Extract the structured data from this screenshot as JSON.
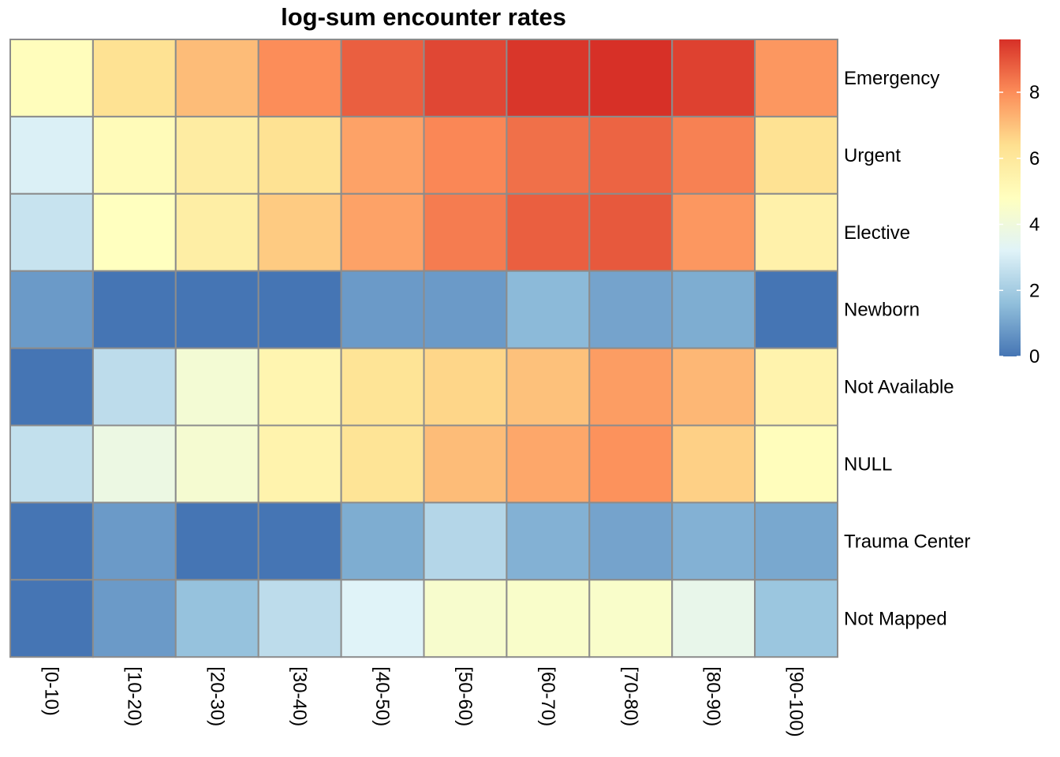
{
  "chart_data": {
    "type": "heatmap",
    "title": "log-sum encounter rates",
    "rows": [
      "Emergency",
      "Urgent",
      "Elective",
      "Newborn",
      "Not Available",
      "NULL",
      "Trauma Center",
      "Not Mapped"
    ],
    "columns": [
      "[0-10)",
      "[10-20)",
      "[20-30)",
      "[30-40)",
      "[40-50)",
      "[50-60)",
      "[60-70)",
      "[70-80)",
      "[80-90)",
      "[90-100)"
    ],
    "values": [
      [
        4.9,
        6.3,
        7.1,
        8.0,
        8.8,
        9.2,
        9.5,
        9.6,
        9.3,
        7.8
      ],
      [
        3.1,
        5.0,
        5.8,
        6.3,
        7.6,
        8.1,
        8.5,
        8.7,
        8.2,
        6.3
      ],
      [
        2.7,
        4.8,
        5.7,
        6.8,
        7.6,
        8.3,
        8.8,
        8.9,
        7.8,
        5.5
      ],
      [
        0.8,
        0.0,
        0.0,
        0.0,
        0.8,
        0.8,
        1.5,
        1.0,
        1.2,
        0.0
      ],
      [
        0.0,
        2.5,
        4.2,
        5.3,
        6.2,
        6.6,
        7.0,
        7.7,
        7.2,
        5.4
      ],
      [
        2.6,
        3.8,
        4.3,
        5.4,
        6.2,
        7.1,
        7.5,
        7.9,
        6.7,
        4.9
      ],
      [
        0.0,
        0.8,
        0.0,
        0.0,
        1.2,
        2.3,
        1.3,
        1.0,
        1.3,
        1.1
      ],
      [
        0.0,
        0.8,
        1.7,
        2.5,
        3.2,
        4.4,
        4.5,
        4.5,
        3.6,
        1.8
      ]
    ],
    "color_scale": {
      "palette": "RdYlBu (reversed)",
      "min": 0,
      "max": 9.6,
      "stops": [
        "#4575b4",
        "#91bfdb",
        "#e0f3f8",
        "#ffffbf",
        "#fee090",
        "#fc8d59",
        "#d73027"
      ],
      "cell_border_color": "#8c8c8c"
    },
    "legend": {
      "placement": "right",
      "ticks": [
        "0",
        "2",
        "4",
        "6",
        "8"
      ],
      "tick_values": [
        0,
        2,
        4,
        6,
        8
      ]
    }
  }
}
